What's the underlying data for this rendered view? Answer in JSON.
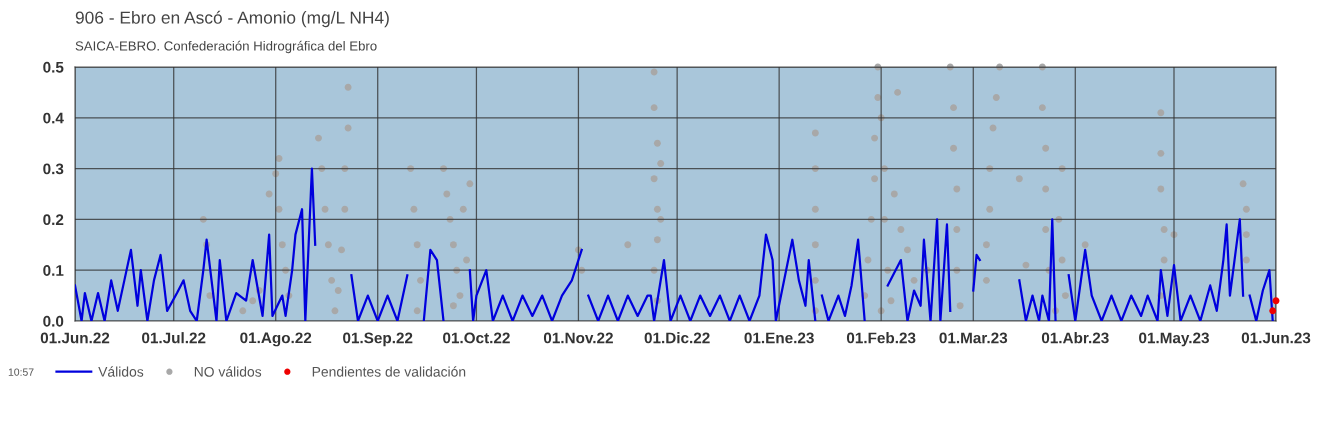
{
  "chart_data": {
    "type": "line",
    "title": "906 - Ebro en Ascó - Amonio (mg/L NH4)",
    "subtitle": "SAICA-EBRO. Confederación Hidrográfica del Ebro",
    "annotations": [
      "10:57"
    ],
    "xlim": [
      "2022-06-01",
      "2023-06-01"
    ],
    "xticks": [
      {
        "value": "2022-06-01",
        "label": "01.Jun.22"
      },
      {
        "value": "2022-07-01",
        "label": "01.Jul.22"
      },
      {
        "value": "2022-08-01",
        "label": "01.Ago.22"
      },
      {
        "value": "2022-09-01",
        "label": "01.Sep.22"
      },
      {
        "value": "2022-10-01",
        "label": "01.Oct.22"
      },
      {
        "value": "2022-11-01",
        "label": "01.Nov.22"
      },
      {
        "value": "2022-12-01",
        "label": "01.Dic.22"
      },
      {
        "value": "2023-01-01",
        "label": "01.Ene.23"
      },
      {
        "value": "2023-02-01",
        "label": "01.Feb.23"
      },
      {
        "value": "2023-03-01",
        "label": "01.Mar.23"
      },
      {
        "value": "2023-04-01",
        "label": "01.Abr.23"
      },
      {
        "value": "2023-05-01",
        "label": "01.May.23"
      },
      {
        "value": "2023-06-01",
        "label": "01.Jun.23"
      }
    ],
    "ylim": [
      0,
      0.5
    ],
    "yticks": [
      {
        "value": 0,
        "label": "0.0"
      },
      {
        "value": 0.1,
        "label": "0.1"
      },
      {
        "value": 0.2,
        "label": "0.2"
      },
      {
        "value": 0.3,
        "label": "0.3"
      },
      {
        "value": 0.4,
        "label": "0.4"
      },
      {
        "value": 0.5,
        "label": "0.5"
      }
    ],
    "grid": true,
    "legend": "bottom left",
    "series": [
      {
        "name": "Válidos",
        "color": "#0000dd",
        "line_style": "solid",
        "x": [
          "2022-06-01",
          "2022-06-03",
          "2022-06-04",
          "2022-06-06",
          "2022-06-08",
          "2022-06-10",
          "2022-06-12",
          "2022-06-14",
          "2022-06-16",
          "2022-06-18",
          "2022-06-20",
          "2022-06-21",
          "2022-06-23",
          "2022-06-25",
          "2022-06-27",
          "2022-06-29",
          "2022-07-02",
          "2022-07-04",
          "2022-07-06",
          "2022-07-08",
          "2022-07-10",
          "2022-07-11",
          "2022-07-14",
          "2022-07-15",
          "2022-07-17",
          "2022-07-20",
          "2022-07-23",
          "2022-07-25",
          "2022-07-28",
          "2022-07-30",
          "2022-07-31",
          "2022-08-03",
          "2022-08-04",
          "2022-08-06",
          "2022-08-07",
          "2022-08-09",
          "2022-08-10",
          "2022-08-12",
          "2022-08-13",
          "2022-08-20",
          "2022-08-24",
          "2022-08-26",
          "2022-08-29",
          "2022-09-01",
          "2022-09-04",
          "2022-09-07",
          "2022-09-10",
          "2022-09-12",
          "2022-09-15",
          "2022-09-17",
          "2022-09-19",
          "2022-09-21",
          "2022-09-24",
          "2022-09-29",
          "2022-09-30",
          "2022-10-01",
          "2022-10-04",
          "2022-10-06",
          "2022-10-09",
          "2022-10-12",
          "2022-10-15",
          "2022-10-18",
          "2022-10-21",
          "2022-10-24",
          "2022-10-27",
          "2022-10-30",
          "2022-11-02",
          "2022-11-03",
          "2022-11-04",
          "2022-11-07",
          "2022-11-10",
          "2022-11-13",
          "2022-11-16",
          "2022-11-19",
          "2022-11-22",
          "2022-11-23",
          "2022-11-24",
          "2022-11-27",
          "2022-11-29",
          "2022-12-02",
          "2022-12-05",
          "2022-12-08",
          "2022-12-11",
          "2022-12-14",
          "2022-12-17",
          "2022-12-20",
          "2022-12-23",
          "2022-12-26",
          "2022-12-28",
          "2022-12-30",
          "2022-12-31",
          "2023-01-05",
          "2023-01-07",
          "2023-01-09",
          "2023-01-10",
          "2023-01-12",
          "2023-01-13",
          "2023-01-14",
          "2023-01-16",
          "2023-01-19",
          "2023-01-21",
          "2023-01-23",
          "2023-01-25",
          "2023-01-27",
          "2023-01-29",
          "2023-02-03",
          "2023-02-07",
          "2023-02-09",
          "2023-02-11",
          "2023-02-13",
          "2023-02-14",
          "2023-02-16",
          "2023-02-18",
          "2023-02-19",
          "2023-02-21",
          "2023-02-22",
          "2023-02-25",
          "2023-03-01",
          "2023-03-02",
          "2023-03-03",
          "2023-03-05",
          "2023-03-15",
          "2023-03-17",
          "2023-03-19",
          "2023-03-21",
          "2023-03-22",
          "2023-03-24",
          "2023-03-25",
          "2023-03-26",
          "2023-03-28",
          "2023-03-30",
          "2023-04-01",
          "2023-04-04",
          "2023-04-06",
          "2023-04-09",
          "2023-04-12",
          "2023-04-15",
          "2023-04-18",
          "2023-04-21",
          "2023-04-23",
          "2023-04-26",
          "2023-04-27",
          "2023-04-29",
          "2023-05-01",
          "2023-05-03",
          "2023-05-06",
          "2023-05-09",
          "2023-05-12",
          "2023-05-14",
          "2023-05-16",
          "2023-05-17",
          "2023-05-18",
          "2023-05-21",
          "2023-05-22",
          "2023-05-23",
          "2023-05-24",
          "2023-05-26",
          "2023-05-28",
          "2023-05-30",
          "2023-05-31"
        ],
        "values": [
          0.07,
          0.0,
          0.055,
          0.0,
          0.055,
          0.0,
          0.08,
          0.02,
          0.08,
          0.14,
          0.03,
          0.1,
          0.0,
          0.08,
          0.13,
          0.02,
          0.055,
          0.08,
          0.02,
          0.0,
          0.1,
          0.16,
          0.0,
          0.12,
          0.0,
          0.055,
          0.04,
          0.12,
          0.01,
          0.17,
          0.01,
          0.05,
          0.01,
          0.1,
          0.17,
          0.22,
          0.0,
          0.3,
          0.15,
          null,
          0.09,
          0.0,
          0.05,
          0.0,
          0.05,
          0.0,
          0.09,
          null,
          0.0,
          0.14,
          0.12,
          0.0,
          null,
          0.1,
          0.0,
          0.05,
          0.1,
          0.0,
          0.05,
          0.0,
          0.05,
          0.01,
          0.05,
          0.0,
          0.05,
          0.08,
          0.14,
          null,
          0.05,
          0.0,
          0.05,
          0.0,
          0.05,
          0.01,
          0.05,
          0.05,
          0.0,
          0.12,
          0.0,
          0.05,
          0.0,
          0.05,
          0.01,
          0.05,
          0.0,
          0.05,
          0.0,
          0.05,
          0.17,
          0.12,
          0.0,
          0.16,
          0.08,
          0.03,
          0.12,
          0.0,
          null,
          0.05,
          0.0,
          0.05,
          0.01,
          0.07,
          0.16,
          0.0,
          null,
          0.07,
          0.12,
          0.0,
          0.06,
          0.03,
          0.16,
          0.0,
          0.2,
          0.0,
          0.19,
          0.02,
          null,
          0.06,
          0.13,
          0.12,
          null,
          0.08,
          0.0,
          0.05,
          0.0,
          0.05,
          0.0,
          0.2,
          0.0,
          null,
          0.09,
          0.0,
          0.14,
          0.05,
          0.0,
          0.05,
          0.0,
          0.05,
          0.01,
          0.05,
          0.0,
          0.1,
          0.01,
          0.11,
          0.0,
          0.05,
          0.0,
          0.07,
          0.02,
          0.12,
          0.19,
          0.05,
          0.2,
          0.05,
          null,
          0.05,
          0.0,
          0.06,
          0.1,
          0.0
        ]
      },
      {
        "name": "NO válidos",
        "type": "scatter",
        "color": "#a8a8a8",
        "marker": "circle",
        "x": [
          "2022-07-10",
          "2022-07-11",
          "2022-07-12",
          "2022-07-22",
          "2022-07-25",
          "2022-07-27",
          "2022-07-30",
          "2022-08-01",
          "2022-08-02",
          "2022-08-02",
          "2022-08-03",
          "2022-08-04",
          "2022-08-05",
          "2022-08-14",
          "2022-08-15",
          "2022-08-16",
          "2022-08-17",
          "2022-08-18",
          "2022-08-19",
          "2022-08-20",
          "2022-08-21",
          "2022-08-22",
          "2022-08-22",
          "2022-08-23",
          "2022-08-23",
          "2022-09-11",
          "2022-09-12",
          "2022-09-13",
          "2022-09-14",
          "2022-09-13",
          "2022-09-21",
          "2022-09-22",
          "2022-09-23",
          "2022-09-24",
          "2022-09-25",
          "2022-09-26",
          "2022-09-27",
          "2022-09-28",
          "2022-09-29",
          "2022-09-24",
          "2022-11-01",
          "2022-11-02",
          "2022-11-16",
          "2022-11-24",
          "2022-11-24",
          "2022-11-25",
          "2022-11-24",
          "2022-11-25",
          "2022-11-25",
          "2022-11-24",
          "2022-11-25",
          "2022-11-26",
          "2022-11-26",
          "2023-01-12",
          "2023-01-12",
          "2023-01-12",
          "2023-01-12",
          "2023-01-12",
          "2023-01-12",
          "2023-01-27",
          "2023-01-28",
          "2023-01-29",
          "2023-01-30",
          "2023-01-30",
          "2023-01-31",
          "2023-01-31",
          "2023-02-01",
          "2023-02-02",
          "2023-02-02",
          "2023-02-03",
          "2023-02-04",
          "2023-02-05",
          "2023-02-06",
          "2023-02-01",
          "2023-02-07",
          "2023-02-09",
          "2023-02-11",
          "2023-02-15",
          "2023-02-22",
          "2023-02-23",
          "2023-02-23",
          "2023-02-24",
          "2023-02-24",
          "2023-02-24",
          "2023-02-25",
          "2023-03-05",
          "2023-03-05",
          "2023-03-06",
          "2023-03-06",
          "2023-03-07",
          "2023-03-08",
          "2023-03-09",
          "2023-03-15",
          "2023-03-17",
          "2023-03-22",
          "2023-03-22",
          "2023-03-23",
          "2023-03-23",
          "2023-03-23",
          "2023-03-24",
          "2023-03-26",
          "2023-03-27",
          "2023-03-28",
          "2023-03-28",
          "2023-03-29",
          "2023-04-04",
          "2023-04-27",
          "2023-04-27",
          "2023-04-27",
          "2023-04-28",
          "2023-04-28",
          "2023-04-27",
          "2023-05-01",
          "2023-05-22",
          "2023-05-23",
          "2023-05-23",
          "2023-05-23"
        ],
        "values": [
          0.2,
          0.15,
          0.05,
          0.02,
          0.04,
          0.06,
          0.25,
          0.29,
          0.22,
          0.32,
          0.15,
          0.1,
          0.05,
          0.36,
          0.3,
          0.22,
          0.15,
          0.08,
          0.02,
          0.06,
          0.14,
          0.22,
          0.3,
          0.38,
          0.46,
          0.3,
          0.22,
          0.15,
          0.08,
          0.02,
          0.3,
          0.25,
          0.2,
          0.15,
          0.1,
          0.05,
          0.22,
          0.12,
          0.27,
          0.03,
          0.14,
          0.1,
          0.15,
          0.49,
          0.42,
          0.35,
          0.28,
          0.22,
          0.16,
          0.1,
          0.04,
          0.31,
          0.2,
          0.37,
          0.3,
          0.22,
          0.15,
          0.08,
          0.02,
          0.05,
          0.12,
          0.2,
          0.28,
          0.36,
          0.44,
          0.5,
          0.4,
          0.3,
          0.2,
          0.1,
          0.04,
          0.25,
          0.45,
          0.02,
          0.18,
          0.14,
          0.08,
          0.1,
          0.5,
          0.42,
          0.34,
          0.26,
          0.18,
          0.1,
          0.03,
          0.08,
          0.15,
          0.22,
          0.3,
          0.38,
          0.44,
          0.5,
          0.28,
          0.11,
          0.5,
          0.42,
          0.34,
          0.26,
          0.18,
          0.1,
          0.02,
          0.2,
          0.3,
          0.12,
          0.05,
          0.15,
          0.41,
          0.33,
          0.26,
          0.18,
          0.12,
          0.05,
          0.17,
          0.27,
          0.22,
          0.17,
          0.12
        ]
      },
      {
        "name": "Pendientes de validación",
        "type": "scatter",
        "color": "#ee0000",
        "marker": "circle",
        "x": [
          "2023-05-31",
          "2023-06-01"
        ],
        "values": [
          0.02,
          0.04
        ]
      }
    ]
  }
}
